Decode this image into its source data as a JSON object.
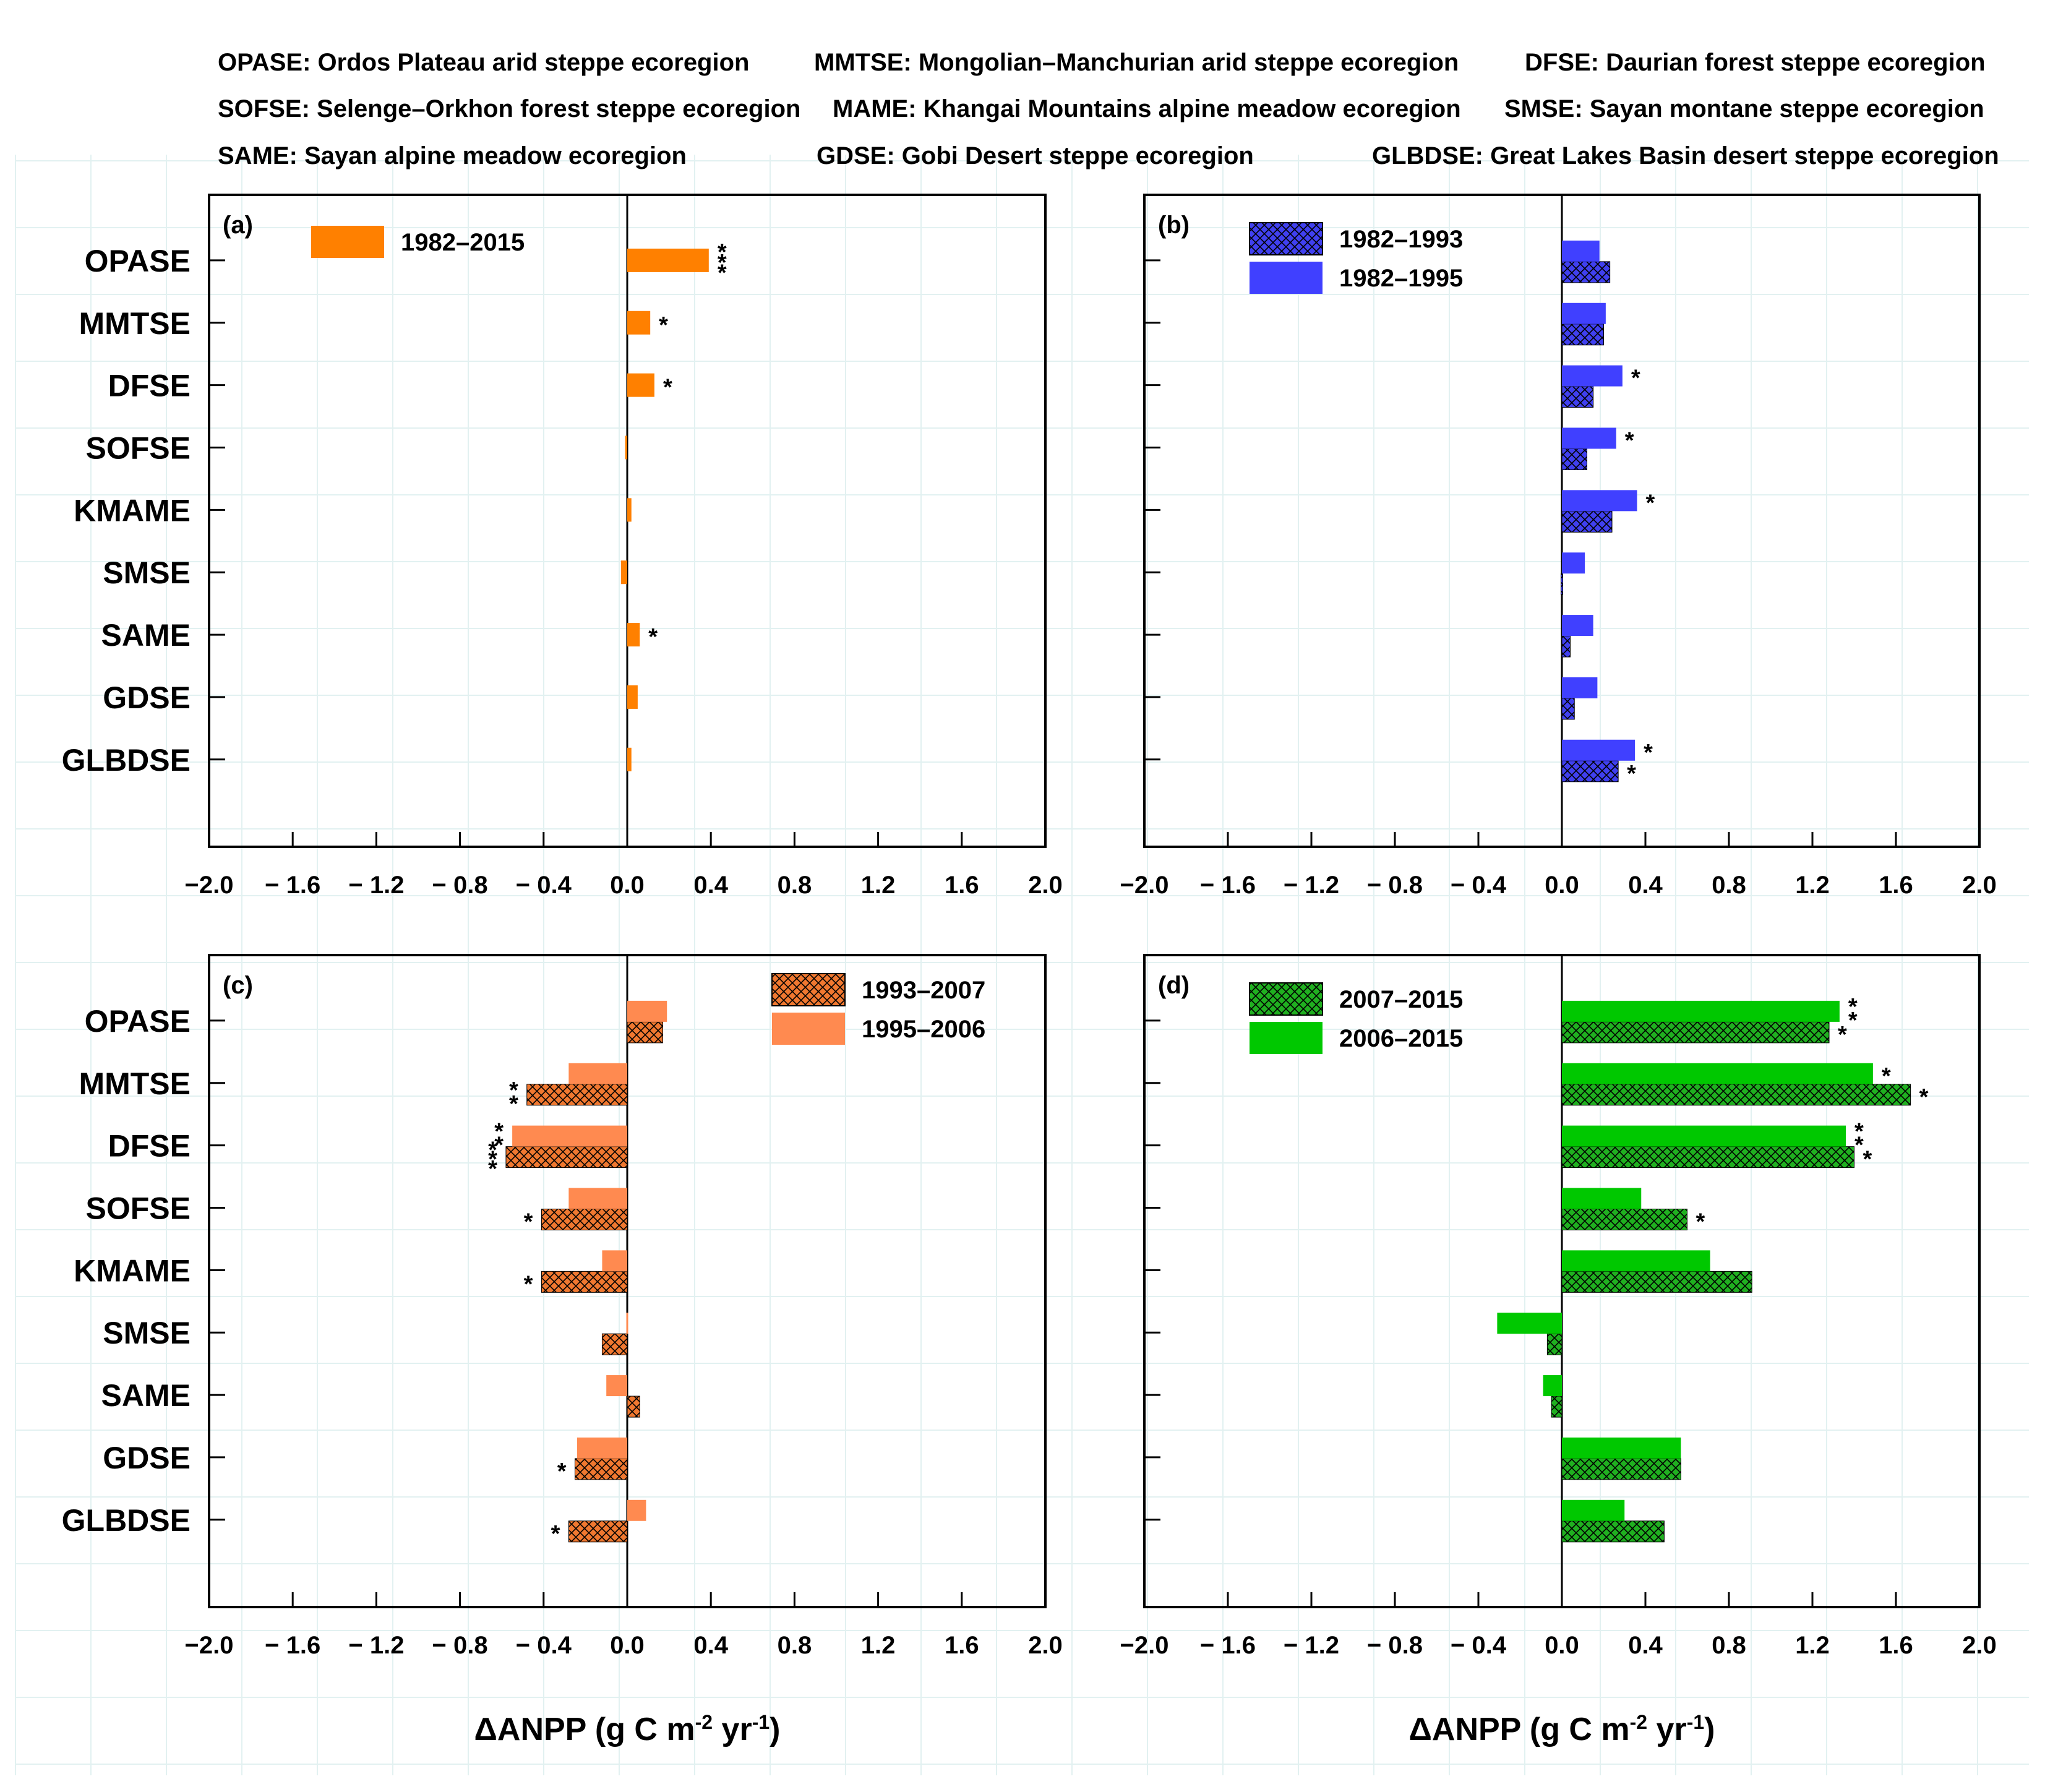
{
  "header_abbreviations": [
    "OPASE: Ordos Plateau arid steppe ecoregion",
    "MMTSE: Mongolian–Manchurian arid steppe ecoregion",
    "DFSE: Daurian forest steppe ecoregion",
    "SOFSE: Selenge–Orkhon forest steppe ecoregion",
    "MAME: Khangai Mountains alpine meadow ecoregion",
    "SMSE: Sayan montane steppe ecoregion",
    "SAME: Sayan alpine meadow ecoregion",
    "GDSE: Gobi Desert steppe ecoregion",
    "GLBDSE: Great Lakes Basin desert steppe ecoregion"
  ],
  "xlabel": {
    "prefix": "ΔANPP (g C m",
    "sup1": "-2",
    "mid": " yr",
    "sup2": "-1",
    "suffix": ")"
  },
  "chart_data": [
    {
      "type": "bar",
      "orientation": "horizontal",
      "panel_label": "(a)",
      "categories": [
        "OPASE",
        "MMTSE",
        "DFSE",
        "SOFSE",
        "KMAME",
        "SMSE",
        "SAME",
        "GDSE",
        "GLBDSE"
      ],
      "xlim": [
        -2.0,
        2.0
      ],
      "xticks": [
        -2.0,
        -1.6,
        -1.2,
        -0.8,
        -0.4,
        0.0,
        0.4,
        0.8,
        1.2,
        1.6,
        2.0
      ],
      "xtick_labels": [
        "−2.0",
        "− 1.6",
        "− 1.2",
        "− 0.8",
        "− 0.4",
        "0.0",
        "0.4",
        "0.8",
        "1.2",
        "1.6",
        "2.0"
      ],
      "legend_position": "top-left",
      "show_xlabel": false,
      "series": [
        {
          "name": "1982–2015",
          "color": "#ff8000",
          "hatch": false,
          "slot": "single",
          "values": [
            0.39,
            0.11,
            0.13,
            -0.01,
            0.02,
            -0.03,
            0.06,
            0.05,
            0.02
          ],
          "stars": [
            "***",
            "*",
            "*",
            "",
            "",
            "",
            "*",
            "",
            ""
          ]
        }
      ]
    },
    {
      "type": "bar",
      "orientation": "horizontal",
      "panel_label": "(b)",
      "categories": [
        "OPASE",
        "MMTSE",
        "DFSE",
        "SOFSE",
        "KMAME",
        "SMSE",
        "SAME",
        "GDSE",
        "GLBDSE"
      ],
      "xlim": [
        -2.0,
        2.0
      ],
      "xticks": [
        -2.0,
        -1.6,
        -1.2,
        -0.8,
        -0.4,
        0.0,
        0.4,
        0.8,
        1.2,
        1.6,
        2.0
      ],
      "xtick_labels": [
        "−2.0",
        "− 1.6",
        "− 1.2",
        "− 0.8",
        "− 0.4",
        "0.0",
        "0.4",
        "0.8",
        "1.2",
        "1.6",
        "2.0"
      ],
      "legend_position": "top-left",
      "show_xlabel": false,
      "series": [
        {
          "name": "1982–1993",
          "color": "#4040f0",
          "hatch": true,
          "slot": "lower",
          "values": [
            0.23,
            0.2,
            0.15,
            0.12,
            0.24,
            0.0,
            0.04,
            0.06,
            0.27
          ],
          "stars": [
            "",
            "",
            "",
            "",
            "",
            "",
            "",
            "",
            "*"
          ]
        },
        {
          "name": "1982–1995",
          "color": "#4040ff",
          "hatch": false,
          "slot": "upper",
          "values": [
            0.18,
            0.21,
            0.29,
            0.26,
            0.36,
            0.11,
            0.15,
            0.17,
            0.35
          ],
          "stars": [
            "",
            "",
            "*",
            "*",
            "*",
            "",
            "",
            "",
            "*"
          ]
        }
      ]
    },
    {
      "type": "bar",
      "orientation": "horizontal",
      "panel_label": "(c)",
      "categories": [
        "OPASE",
        "MMTSE",
        "DFSE",
        "SOFSE",
        "KMAME",
        "SMSE",
        "SAME",
        "GDSE",
        "GLBDSE"
      ],
      "xlim": [
        -2.0,
        2.0
      ],
      "xticks": [
        -2.0,
        -1.6,
        -1.2,
        -0.8,
        -0.4,
        0.0,
        0.4,
        0.8,
        1.2,
        1.6,
        2.0
      ],
      "xtick_labels": [
        "−2.0",
        "− 1.6",
        "− 1.2",
        "− 0.8",
        "− 0.4",
        "0.0",
        "0.4",
        "0.8",
        "1.2",
        "1.6",
        "2.0"
      ],
      "legend_position": "top-right",
      "show_xlabel": true,
      "series": [
        {
          "name": "1993–2007",
          "color": "#f07830",
          "hatch": true,
          "slot": "lower",
          "values": [
            0.17,
            -0.48,
            -0.58,
            -0.41,
            -0.41,
            -0.12,
            0.06,
            -0.25,
            -0.28
          ],
          "stars": [
            "",
            "**",
            "***",
            "*",
            "*",
            "",
            "",
            "*",
            "*"
          ]
        },
        {
          "name": "1995–2006",
          "color": "#ff8a50",
          "hatch": false,
          "slot": "upper",
          "values": [
            0.19,
            -0.28,
            -0.55,
            -0.28,
            -0.12,
            0.0,
            -0.1,
            -0.24,
            0.09
          ],
          "stars": [
            "",
            "",
            "**",
            "",
            "",
            "",
            "",
            "",
            ""
          ]
        }
      ]
    },
    {
      "type": "bar",
      "orientation": "horizontal",
      "panel_label": "(d)",
      "categories": [
        "OPASE",
        "MMTSE",
        "DFSE",
        "SOFSE",
        "KMAME",
        "SMSE",
        "SAME",
        "GDSE",
        "GLBDSE"
      ],
      "xlim": [
        -2.0,
        2.0
      ],
      "xticks": [
        -2.0,
        -1.6,
        -1.2,
        -0.8,
        -0.4,
        0.0,
        0.4,
        0.8,
        1.2,
        1.6,
        2.0
      ],
      "xtick_labels": [
        "−2.0",
        "− 1.6",
        "− 1.2",
        "− 0.8",
        "− 0.4",
        "0.0",
        "0.4",
        "0.8",
        "1.2",
        "1.6",
        "2.0"
      ],
      "legend_position": "top-left",
      "show_xlabel": true,
      "series": [
        {
          "name": "2007–2015",
          "color": "#20b020",
          "hatch": true,
          "slot": "lower",
          "values": [
            1.28,
            1.67,
            1.4,
            0.6,
            0.91,
            -0.07,
            -0.05,
            0.57,
            0.49
          ],
          "stars": [
            "*",
            "*",
            "*",
            "*",
            "",
            "",
            "",
            "",
            ""
          ]
        },
        {
          "name": "2006–2015",
          "color": "#00c800",
          "hatch": false,
          "slot": "upper",
          "values": [
            1.33,
            1.49,
            1.36,
            0.38,
            0.71,
            -0.31,
            -0.09,
            0.57,
            0.3
          ],
          "stars": [
            "**",
            "*",
            "**",
            "",
            "",
            "",
            "",
            "",
            ""
          ]
        }
      ]
    }
  ]
}
